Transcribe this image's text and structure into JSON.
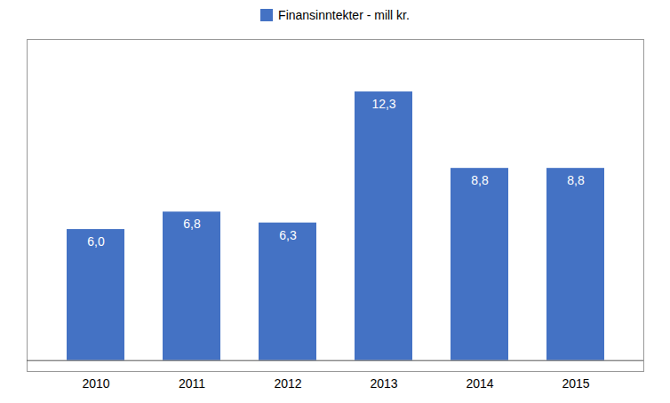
{
  "chart_data": {
    "type": "bar",
    "categories": [
      "2010",
      "2011",
      "2012",
      "2013",
      "2014",
      "2015"
    ],
    "series": [
      {
        "name": "Finansinntekter - mill kr.",
        "color": "#4472C4",
        "values": [
          6.0,
          6.8,
          6.3,
          12.3,
          8.8,
          8.8
        ],
        "value_labels": [
          "6,0",
          "6,8",
          "6,3",
          "12,3",
          "8,8",
          "8,8"
        ]
      }
    ],
    "ylim": [
      -0.5,
      14.7
    ],
    "yticks": [],
    "data_labels": true,
    "tick_labels": "x",
    "legend": "top",
    "grid": false
  }
}
